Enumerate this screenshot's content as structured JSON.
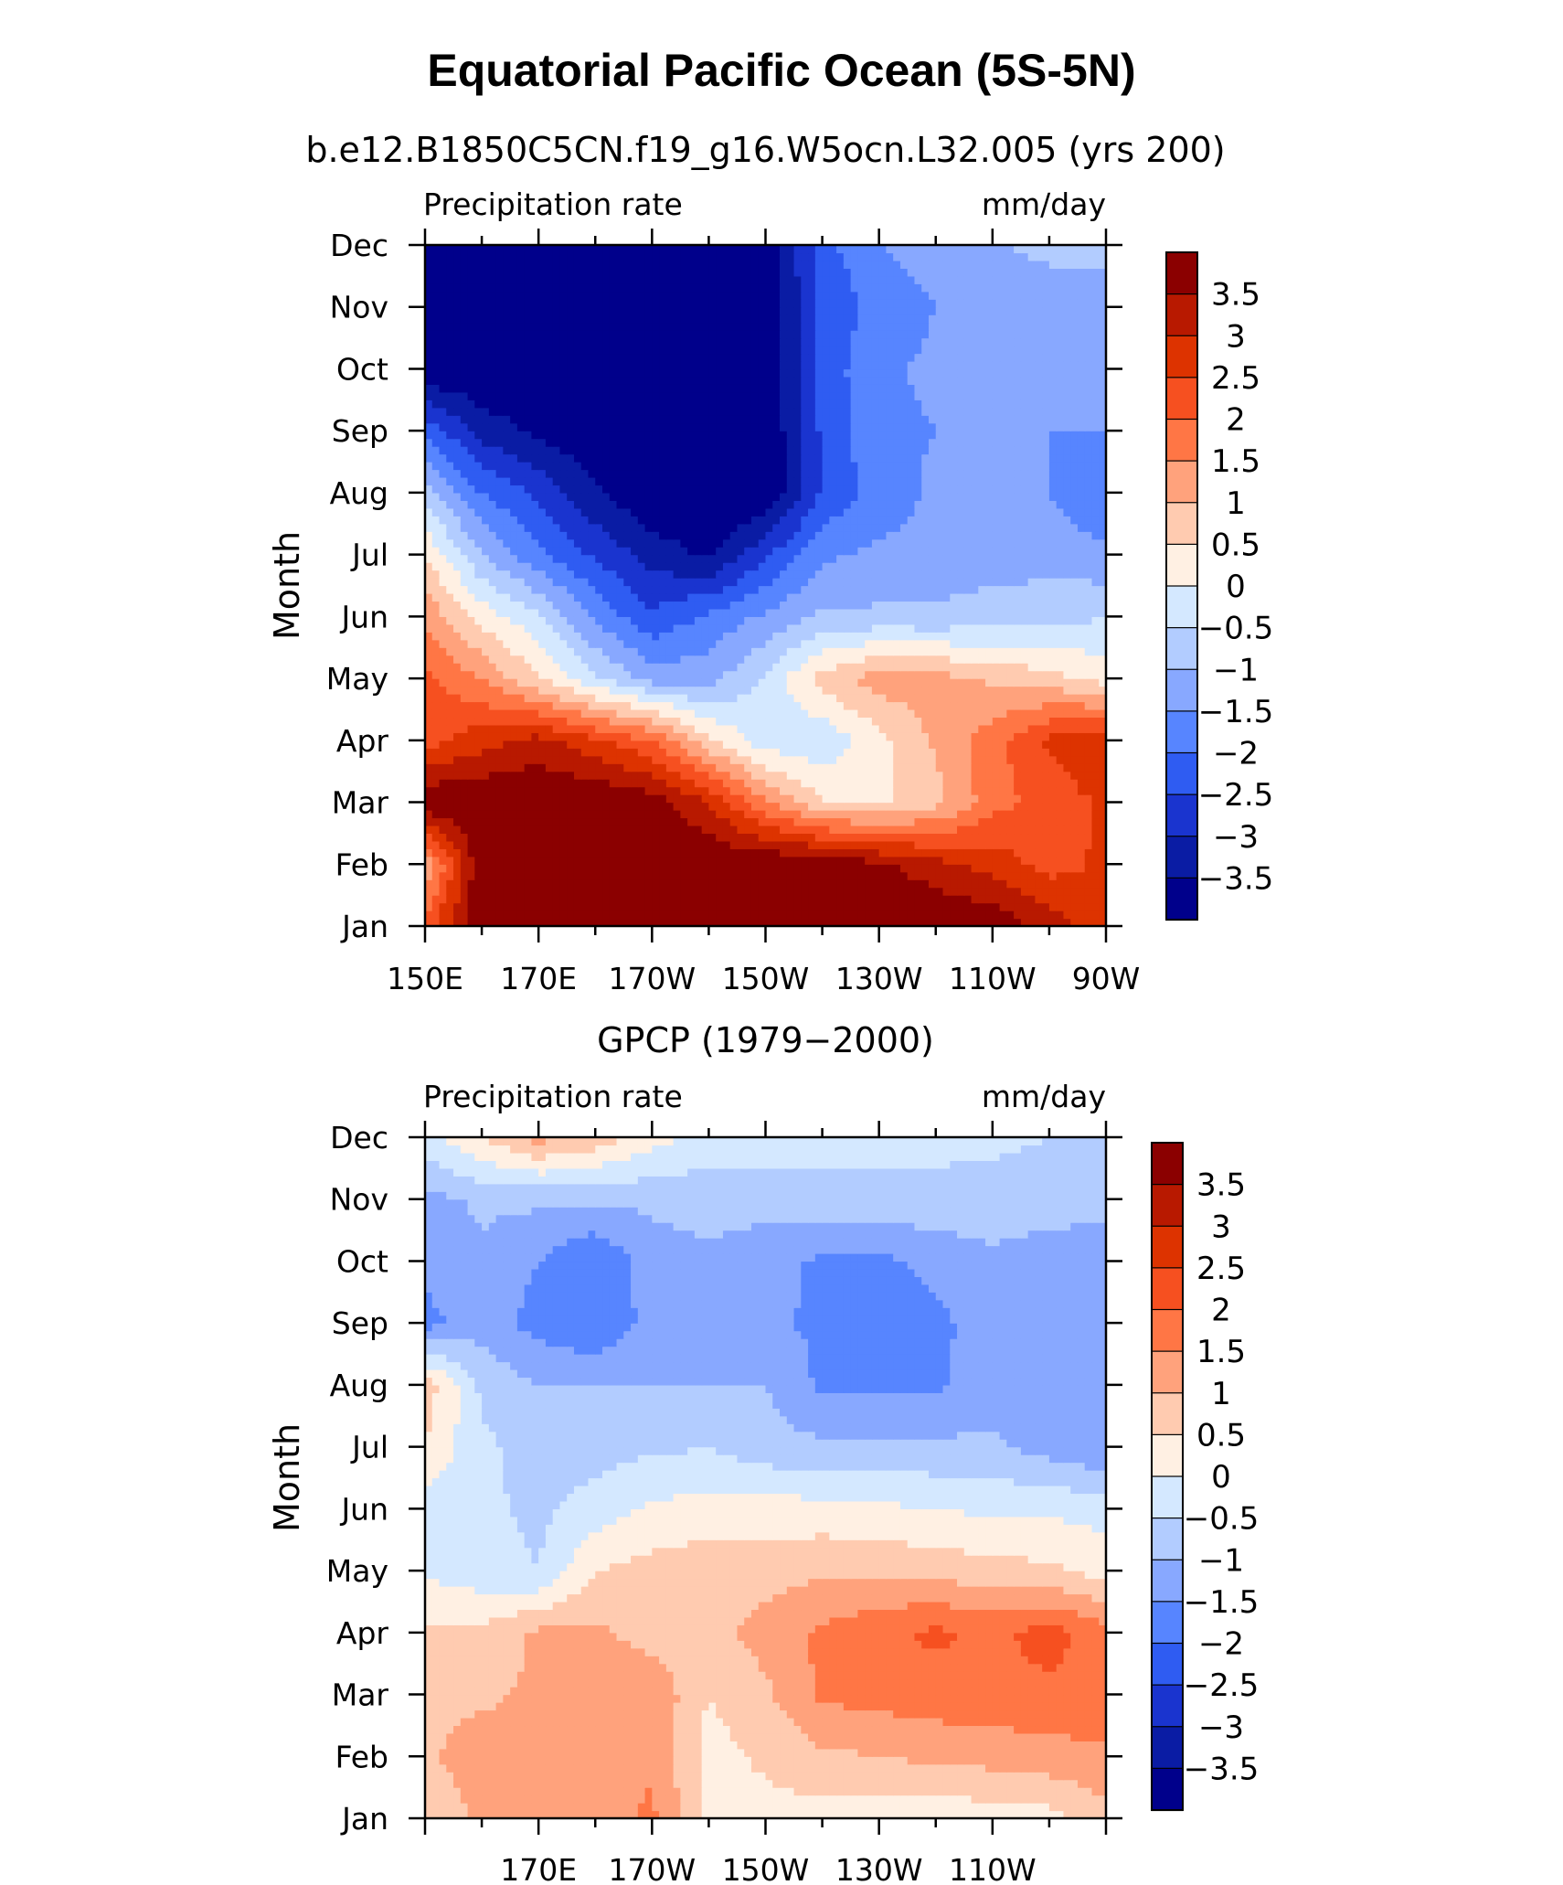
{
  "figure": {
    "title": "Equatorial Pacific Ocean (5S-5N)"
  },
  "colorbar": {
    "levels": [
      "3.5",
      "3",
      "2.5",
      "2",
      "1.5",
      "1",
      "0.5",
      "0",
      "−0.5",
      "−1",
      "−1.5",
      "−2",
      "−2.5",
      "−3",
      "−3.5"
    ],
    "colors": [
      "#8b0000",
      "#b81900",
      "#dd3300",
      "#f65020",
      "#ff7645",
      "#ffa27c",
      "#ffcbb0",
      "#fff0e3",
      "#d4e8ff",
      "#b2ccff",
      "#88a8ff",
      "#5785ff",
      "#2f5cf2",
      "#1a34cf",
      "#0a1ca4",
      "#00008b"
    ]
  },
  "chart_data": [
    {
      "type": "heatmap",
      "title": "b.e12.B1850C5CN.f19_g16.W5ocn.L32.005 (yrs 200)",
      "left_label": "Precipitation rate",
      "right_label": "mm/day",
      "xlabel": "",
      "ylabel": "Month",
      "x_ticks": [
        "150E",
        "170E",
        "170W",
        "150W",
        "130W",
        "110W",
        "90W"
      ],
      "x_range": [
        "150E",
        "90W"
      ],
      "y_ticks": [
        "Jan",
        "Feb",
        "Mar",
        "Apr",
        "May",
        "Jun",
        "Jul",
        "Aug",
        "Sep",
        "Oct",
        "Nov",
        "Dec"
      ],
      "units": "mm/day",
      "x_lon": [
        150,
        160,
        170,
        180,
        190,
        200,
        210,
        220,
        230,
        240,
        250,
        260,
        270
      ],
      "z": [
        [
          2.2,
          4.0,
          4.0,
          4.0,
          4.0,
          4.0,
          4.0,
          4.0,
          4.0,
          4.0,
          3.9,
          3.3,
          2.6
        ],
        [
          1.0,
          4.0,
          4.0,
          4.0,
          4.0,
          4.0,
          4.0,
          4.0,
          3.6,
          3.2,
          2.8,
          2.3,
          2.6
        ],
        [
          4.0,
          4.0,
          4.0,
          4.0,
          3.8,
          3.0,
          1.6,
          0.5,
          0.4,
          0.8,
          1.8,
          2.2,
          2.6
        ],
        [
          2.3,
          2.8,
          3.2,
          2.6,
          2.0,
          0.6,
          -0.3,
          -0.4,
          0.3,
          1.1,
          1.8,
          2.6,
          3.0
        ],
        [
          2.1,
          1.5,
          0.5,
          -0.4,
          -1.2,
          -1.2,
          -0.4,
          0.7,
          1.3,
          1.2,
          0.9,
          0.7,
          0.3
        ],
        [
          1.4,
          0.3,
          -0.4,
          -1.6,
          -2.4,
          -1.9,
          -1.4,
          -0.9,
          -0.9,
          -0.9,
          -0.8,
          -0.7,
          -0.5
        ],
        [
          0.5,
          -1.0,
          -1.9,
          -2.6,
          -3.2,
          -3.6,
          -2.6,
          -1.6,
          -1.4,
          -1.3,
          -1.2,
          -1.2,
          -1.4
        ],
        [
          -0.8,
          -2.0,
          -2.6,
          -3.4,
          -4.0,
          -4.0,
          -4.0,
          -2.4,
          -1.8,
          -1.4,
          -1.4,
          -1.5,
          -2.0
        ],
        [
          -2.1,
          -3.2,
          -3.6,
          -4.0,
          -4.0,
          -4.0,
          -4.0,
          -2.4,
          -1.6,
          -1.5,
          -1.5,
          -1.5,
          -1.5
        ],
        [
          -4.0,
          -4.0,
          -4.0,
          -4.0,
          -4.0,
          -4.0,
          -4.0,
          -2.3,
          -1.6,
          -1.4,
          -1.2,
          -1.4,
          -1.5
        ],
        [
          -4.0,
          -4.0,
          -4.0,
          -4.0,
          -4.0,
          -4.0,
          -4.0,
          -2.4,
          -1.8,
          -1.5,
          -1.4,
          -1.4,
          -1.3
        ],
        [
          -4.0,
          -3.5,
          -4.0,
          -4.0,
          -4.0,
          -4.0,
          -3.8,
          -2.2,
          -1.5,
          -1.3,
          -1.1,
          -0.8,
          -0.8
        ]
      ]
    },
    {
      "type": "heatmap",
      "title": "GPCP (1979−2000)",
      "left_label": "Precipitation rate",
      "right_label": "mm/day",
      "xlabel": "",
      "ylabel": "Month",
      "x_ticks": [
        "170E",
        "170W",
        "150W",
        "130W",
        "110W"
      ],
      "y_ticks": [
        "Jan",
        "Feb",
        "Mar",
        "Apr",
        "May",
        "Jun",
        "Jul",
        "Aug",
        "Sep",
        "Oct",
        "Nov",
        "Dec"
      ],
      "units": "mm/day",
      "x_lon": [
        150,
        160,
        170,
        180,
        190,
        200,
        210,
        220,
        230,
        240,
        250,
        260,
        270
      ],
      "z": [
        [
          0.6,
          1.1,
          1.1,
          1.3,
          1.6,
          0.4,
          0.3,
          0.3,
          0.2,
          0.2,
          0.2,
          0.3,
          0.8
        ],
        [
          0.9,
          1.3,
          1.1,
          1.4,
          1.4,
          0.3,
          0.6,
          0.9,
          1.0,
          1.1,
          1.2,
          1.3,
          1.4
        ],
        [
          0.8,
          0.9,
          1.1,
          1.3,
          1.4,
          0.5,
          0.9,
          1.6,
          1.7,
          1.8,
          1.8,
          1.9,
          1.8
        ],
        [
          0.6,
          0.6,
          1.1,
          1.1,
          0.8,
          0.8,
          1.2,
          1.6,
          1.9,
          2.1,
          1.9,
          2.2,
          1.7
        ],
        [
          -0.1,
          -0.3,
          -0.5,
          0.5,
          0.7,
          0.8,
          0.8,
          0.9,
          0.9,
          0.8,
          0.7,
          0.6,
          0.3
        ],
        [
          -0.3,
          -0.4,
          -0.6,
          -0.3,
          0.1,
          0.2,
          0.2,
          0.2,
          0.1,
          0.0,
          -0.1,
          -0.1,
          -0.2
        ],
        [
          0.5,
          -0.4,
          -0.7,
          -0.7,
          -0.6,
          -0.5,
          -0.8,
          -0.9,
          -0.9,
          -0.9,
          -0.9,
          -1.2,
          -1.5
        ],
        [
          0.8,
          -0.6,
          -1.0,
          -1.0,
          -1.0,
          -1.0,
          -1.0,
          -1.6,
          -1.6,
          -1.6,
          -1.2,
          -1.3,
          -1.4
        ],
        [
          -1.7,
          -1.2,
          -1.7,
          -2.0,
          -1.3,
          -1.1,
          -1.4,
          -1.6,
          -1.6,
          -1.6,
          -1.3,
          -1.5,
          -1.4
        ],
        [
          -1.3,
          -1.1,
          -1.5,
          -2.0,
          -1.2,
          -1.1,
          -1.3,
          -1.6,
          -1.6,
          -1.4,
          -1.1,
          -1.3,
          -1.5
        ],
        [
          -1.2,
          -0.9,
          -0.9,
          -0.9,
          -0.9,
          -0.8,
          -0.8,
          -0.7,
          -0.7,
          -0.6,
          -0.7,
          -0.7,
          -0.7
        ],
        [
          -0.2,
          0.5,
          1.2,
          0.8,
          0.2,
          -0.2,
          -0.2,
          -0.3,
          -0.3,
          -0.4,
          -0.4,
          -0.5,
          -0.6
        ]
      ]
    }
  ]
}
